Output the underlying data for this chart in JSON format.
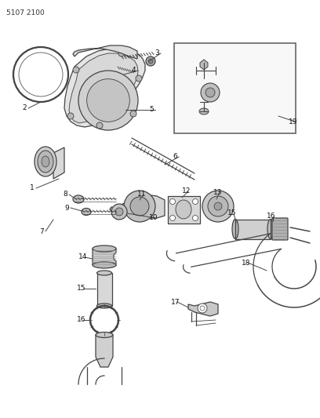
{
  "title": "5107 2100",
  "background_color": "#ffffff",
  "line_color": "#444444",
  "figsize": [
    4.08,
    5.33
  ],
  "dpi": 100,
  "label_fs": 6.5
}
